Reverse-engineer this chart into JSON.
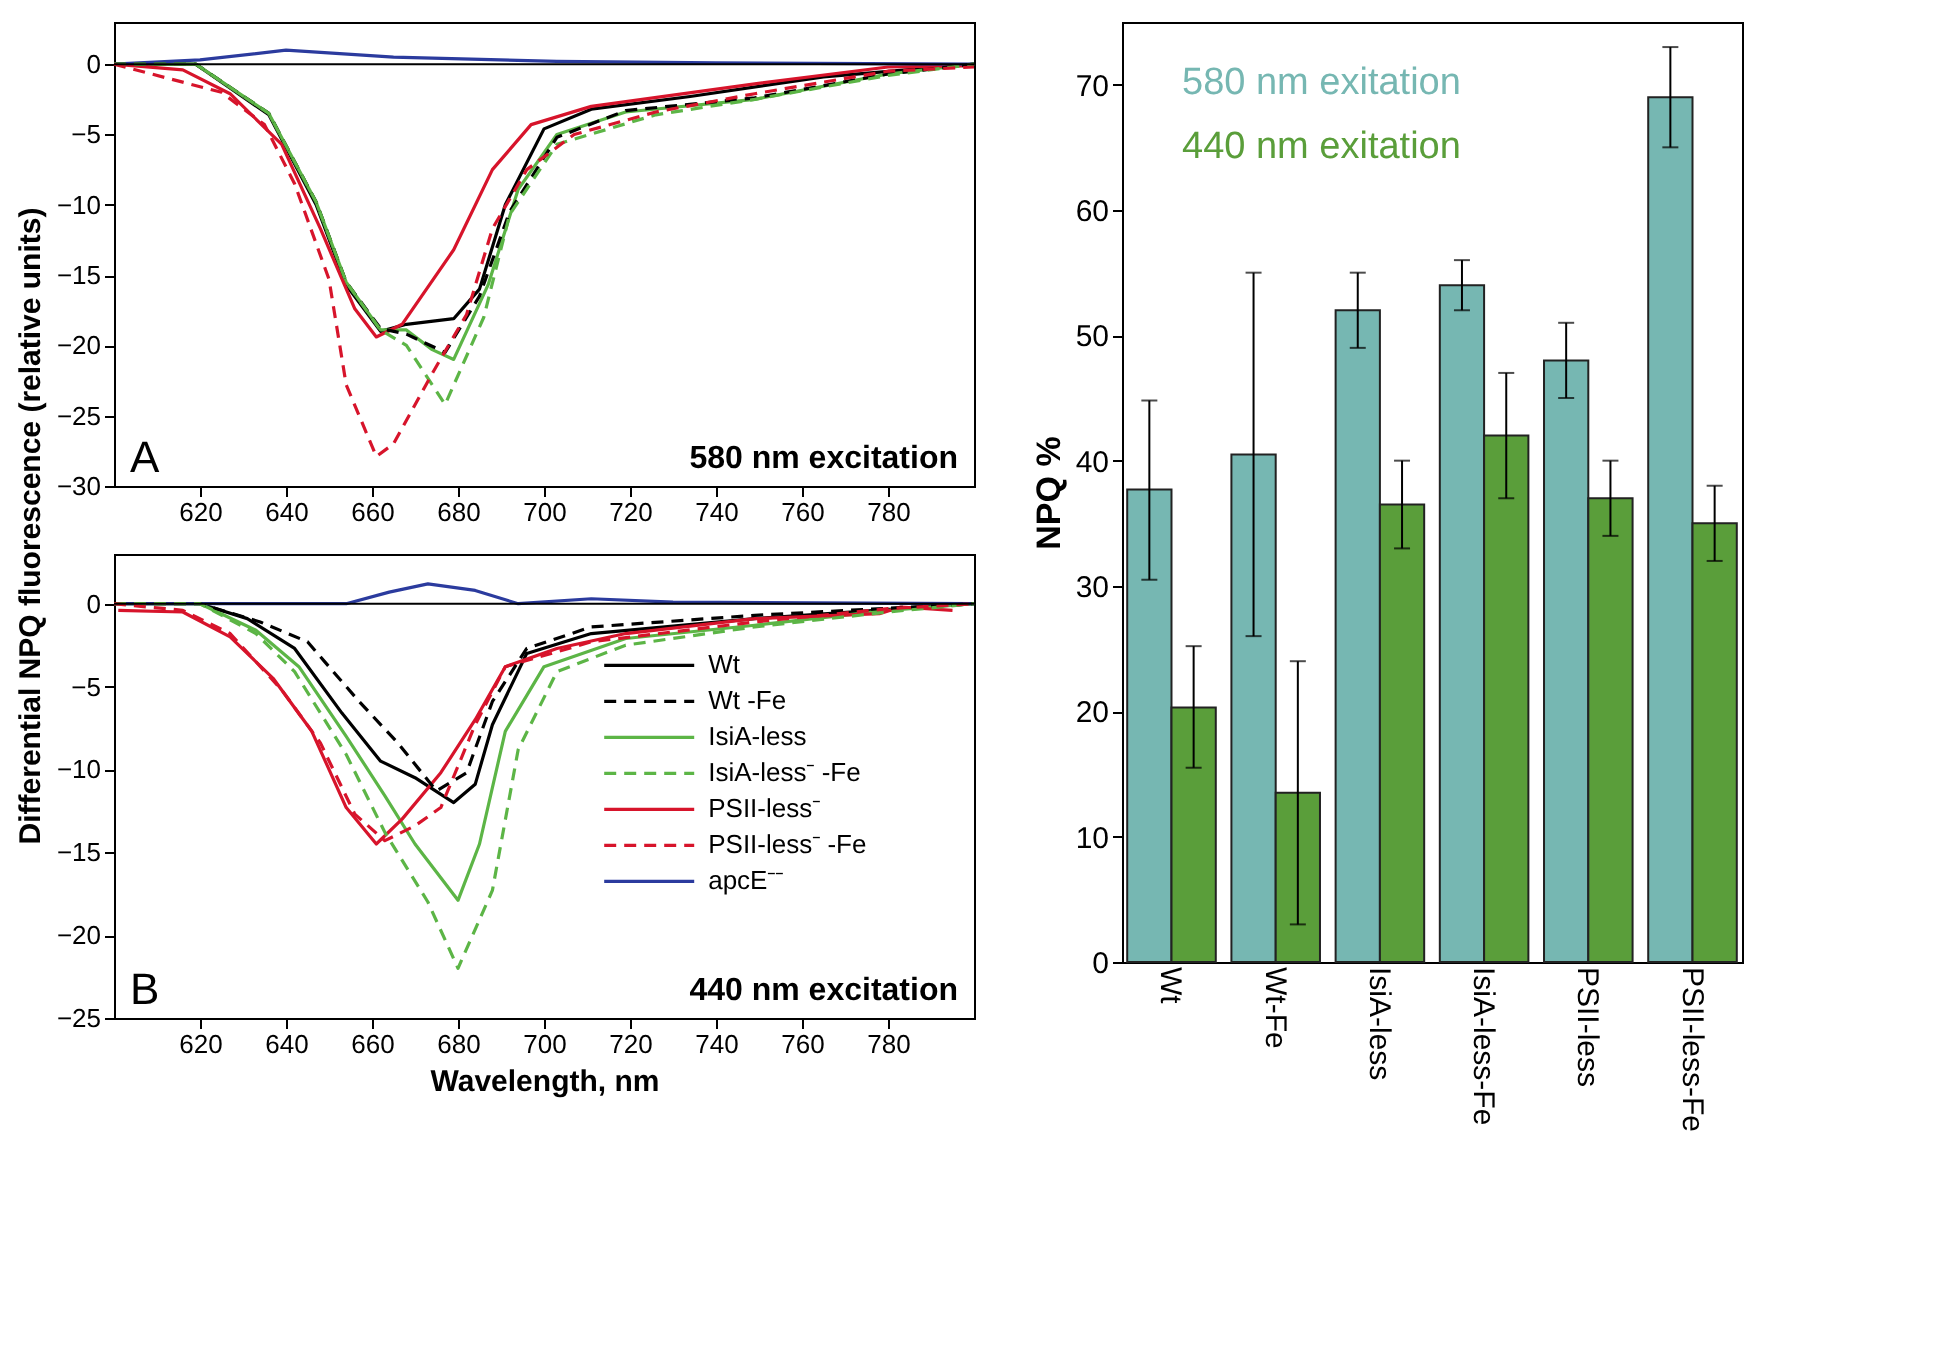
{
  "chart_data": [
    {
      "type": "line",
      "ylabel": "Differential NPQ fluorescence (relative units)",
      "annotations": [
        "A",
        "580 nm excitation"
      ],
      "xlim": [
        600,
        800
      ],
      "xticks": [
        620,
        640,
        660,
        680,
        700,
        720,
        740,
        760,
        780
      ],
      "ylim": [
        -30,
        3
      ],
      "yticks": [
        0,
        -5,
        -10,
        -15,
        -20,
        -25,
        -30
      ],
      "grid": false,
      "legend": false,
      "ref_lines": [
        {
          "axis": "y",
          "value": 0,
          "color": "#000000"
        }
      ],
      "series": [
        {
          "color": "#000000",
          "line_style": "solid",
          "x": [
            600,
            619,
            636,
            647,
            654,
            662,
            668,
            679,
            685,
            691,
            700,
            711,
            734,
            765,
            800
          ],
          "values": [
            0,
            0,
            -3.6,
            -10,
            -15.7,
            -19,
            -18.5,
            -18.1,
            -16,
            -10,
            -4.6,
            -3.2,
            -2.3,
            -0.9,
            0
          ]
        },
        {
          "color": "#000000",
          "line_style": "dashed",
          "x": [
            600,
            619,
            636,
            647,
            654,
            662,
            668,
            677,
            685,
            692,
            703,
            719,
            749,
            780,
            800
          ],
          "values": [
            0,
            0,
            -3.5,
            -9.8,
            -15.5,
            -18.8,
            -19.2,
            -20.5,
            -16.5,
            -10.5,
            -5.2,
            -3.3,
            -2.4,
            -0.7,
            0
          ]
        },
        {
          "color": "#5cb546",
          "line_style": "solid",
          "x": [
            600,
            619,
            636,
            647,
            654,
            662,
            668,
            674,
            679,
            687,
            694,
            703,
            719,
            749,
            780,
            800
          ],
          "values": [
            0,
            0,
            -3.5,
            -9.8,
            -15.5,
            -18.9,
            -18.9,
            -20.3,
            -21,
            -15.7,
            -8.9,
            -5,
            -3.4,
            -2.5,
            -0.7,
            0
          ]
        },
        {
          "color": "#5cb546",
          "line_style": "dashed",
          "x": [
            600,
            619,
            636,
            647,
            654,
            662,
            668,
            677,
            686,
            692,
            703,
            726,
            749,
            780,
            800
          ],
          "values": [
            0,
            0,
            -3.5,
            -9.8,
            -15.5,
            -18.9,
            -20,
            -24.2,
            -18,
            -10.7,
            -5.7,
            -3.6,
            -2.5,
            -0.8,
            0
          ]
        },
        {
          "color": "#d7142b",
          "line_style": "solid",
          "x": [
            600,
            616,
            627,
            639,
            648,
            656,
            661,
            667,
            679,
            688,
            697,
            711,
            749,
            780,
            800
          ],
          "values": [
            0,
            -0.4,
            -2.1,
            -5.7,
            -11.7,
            -17.4,
            -19.4,
            -18.5,
            -13.2,
            -7.5,
            -4.3,
            -3,
            -1.4,
            -0.2,
            -0.1
          ]
        },
        {
          "color": "#d7142b",
          "line_style": "dashed",
          "x": [
            600,
            625,
            635,
            642,
            650,
            654,
            661,
            665,
            674,
            682,
            688,
            696,
            707,
            726,
            749,
            780,
            800
          ],
          "values": [
            0,
            -2,
            -4.3,
            -8.5,
            -15.3,
            -22.8,
            -27.9,
            -27,
            -22,
            -17.8,
            -11.7,
            -7.5,
            -5,
            -3.4,
            -2.1,
            -0.5,
            -0.2
          ]
        },
        {
          "color": "#2b3b9e",
          "line_style": "solid",
          "x": [
            600,
            620,
            640,
            665,
            703,
            740,
            800
          ],
          "values": [
            0,
            0.3,
            1,
            0.5,
            0.2,
            0.1,
            0
          ]
        }
      ]
    },
    {
      "type": "line",
      "xlabel": "Wavelength, nm",
      "annotations": [
        "B",
        "440 nm excitation"
      ],
      "xlim": [
        600,
        800
      ],
      "xticks": [
        620,
        640,
        660,
        680,
        700,
        720,
        740,
        760,
        780
      ],
      "ylim": [
        -25,
        3
      ],
      "yticks": [
        0,
        -5,
        -10,
        -15,
        -20,
        -25
      ],
      "grid": false,
      "legend": "right",
      "ref_lines": [
        {
          "axis": "y",
          "value": 0,
          "color": "#000000"
        }
      ],
      "series": [
        {
          "name": "Wt",
          "color": "#000000",
          "line_style": "solid",
          "x": [
            600,
            620,
            631,
            642,
            653,
            662,
            670,
            679,
            684,
            688,
            696,
            711,
            749,
            800
          ],
          "values": [
            0,
            0,
            -0.9,
            -2.7,
            -6.6,
            -9.5,
            -10.5,
            -12,
            -10.9,
            -7.3,
            -3,
            -1.8,
            -0.9,
            0
          ]
        },
        {
          "name": "Wt -Fe",
          "color": "#000000",
          "line_style": "dashed",
          "x": [
            600,
            620,
            634,
            645,
            657,
            666,
            675,
            682,
            688,
            696,
            711,
            749,
            800
          ],
          "values": [
            0,
            0,
            -1.1,
            -2.3,
            -5.9,
            -8.4,
            -11.3,
            -10.2,
            -5.9,
            -2.7,
            -1.4,
            -0.7,
            0
          ]
        },
        {
          "name": "IsiA-less",
          "color": "#5cb546",
          "line_style": "solid",
          "x": [
            600,
            620,
            633,
            643,
            654,
            663,
            670,
            680,
            685,
            691,
            700,
            719,
            749,
            780,
            800
          ],
          "values": [
            0,
            0,
            -1.6,
            -3.8,
            -8,
            -11.6,
            -14.5,
            -17.9,
            -14.5,
            -7.7,
            -3.8,
            -2.1,
            -1.3,
            -0.4,
            0
          ]
        },
        {
          "name": "IsiA-less⁻ -Fe",
          "color": "#5cb546",
          "line_style": "dashed",
          "x": [
            600,
            620,
            633,
            642,
            654,
            663,
            673,
            680,
            688,
            694,
            703,
            719,
            749,
            780,
            800
          ],
          "values": [
            0,
            0,
            -1.8,
            -4.1,
            -9.1,
            -13.8,
            -18,
            -22,
            -17.3,
            -8.8,
            -4.1,
            -2.5,
            -1.4,
            -0.5,
            0
          ]
        },
        {
          "name": "PSII-less⁻",
          "color": "#d7142b",
          "line_style": "solid",
          "x": [
            601,
            616,
            627,
            637,
            646,
            654,
            661,
            667,
            676,
            684,
            691,
            703,
            719,
            749,
            778,
            783,
            795
          ],
          "values": [
            -0.4,
            -0.5,
            -2,
            -4.5,
            -7.7,
            -12.3,
            -14.5,
            -13,
            -10.2,
            -7,
            -3.8,
            -2.7,
            -1.8,
            -0.9,
            -0.6,
            -0.2,
            -0.4
          ]
        },
        {
          "name": "PSII-less⁻ -Fe",
          "color": "#d7142b",
          "line_style": "dashed",
          "x": [
            600,
            616,
            627,
            639,
            648,
            656,
            663,
            670,
            676,
            684,
            691,
            711,
            749,
            780,
            800
          ],
          "values": [
            0,
            -0.4,
            -1.8,
            -5.2,
            -8.4,
            -12.7,
            -14.3,
            -13.4,
            -12.3,
            -7.3,
            -3.8,
            -2.3,
            -1.1,
            -0.3,
            0
          ]
        },
        {
          "name": "apcE⁻⁻",
          "color": "#2b3b9e",
          "line_style": "solid",
          "x": [
            600,
            654,
            664,
            673,
            684,
            694,
            711,
            730,
            800
          ],
          "values": [
            0,
            0,
            0.7,
            1.2,
            0.8,
            0,
            0.3,
            0.1,
            0
          ]
        }
      ]
    },
    {
      "type": "bar",
      "ylabel": "NPQ %",
      "categories": [
        "Wt",
        "Wt-Fe",
        "IsiA-less",
        "IsiA-less-Fe",
        "PSII-less",
        "PSII-less-Fe"
      ],
      "ylim": [
        0,
        75
      ],
      "yticks": [
        0,
        10,
        20,
        30,
        40,
        50,
        60,
        70
      ],
      "grid": false,
      "legend": "top left",
      "series": [
        {
          "name": "580 nm exitation",
          "color": "#76b7b2",
          "values": [
            37.7,
            40.5,
            52,
            54,
            48,
            69
          ],
          "errors": [
            [
              30.5,
              44.8
            ],
            [
              26,
              55
            ],
            [
              49,
              55
            ],
            [
              52,
              56
            ],
            [
              45,
              51
            ],
            [
              65,
              73
            ]
          ]
        },
        {
          "name": "440 nm exitation",
          "color": "#5a9e3a",
          "values": [
            20.3,
            13.5,
            36.5,
            42,
            37,
            35
          ],
          "errors": [
            [
              15.5,
              25.2
            ],
            [
              3,
              24
            ],
            [
              33,
              40
            ],
            [
              37,
              47
            ],
            [
              34,
              40
            ],
            [
              32,
              38
            ]
          ]
        }
      ]
    }
  ]
}
